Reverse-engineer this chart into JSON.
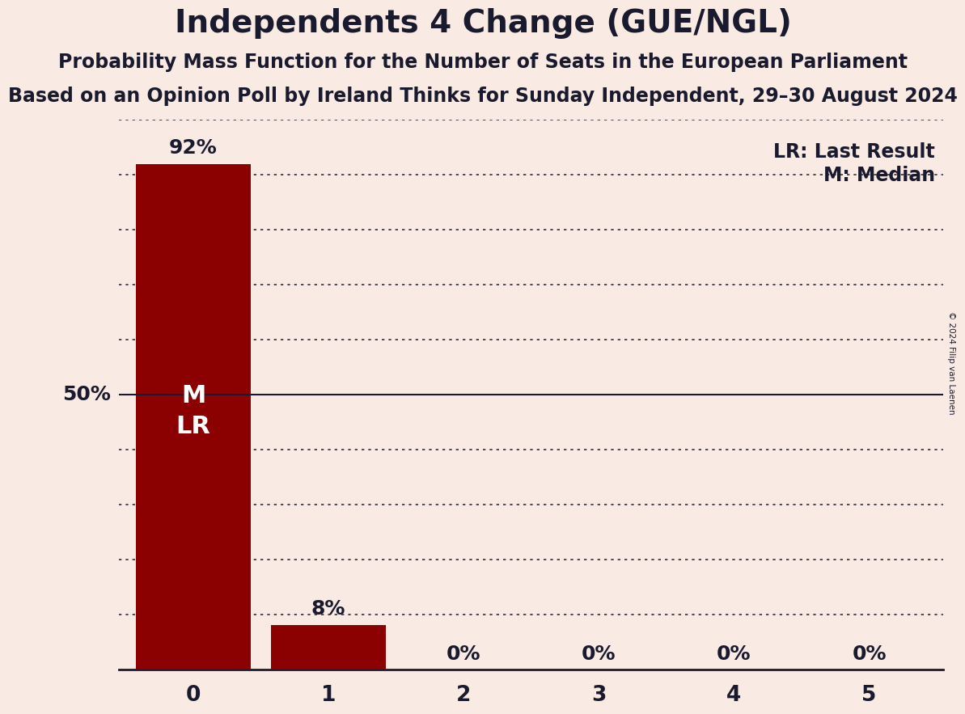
{
  "title": "Independents 4 Change (GUE/NGL)",
  "subtitle1": "Probability Mass Function for the Number of Seats in the European Parliament",
  "subtitle2": "Based on an Opinion Poll by Ireland Thinks for Sunday Independent, 29–30 August 2024",
  "copyright": "© 2024 Filip van Laenen",
  "seats": [
    0,
    1,
    2,
    3,
    4,
    5
  ],
  "probabilities": [
    0.92,
    0.08,
    0.0,
    0.0,
    0.0,
    0.0
  ],
  "bar_color": "#8b0000",
  "background_color": "#faeae4",
  "text_color": "#1a1a2e",
  "label_color_white": "#ffffff",
  "median_line_color": "#1a1a2e",
  "dotted_line_color": "#1a1a2e",
  "y_label_text": "50%",
  "y_label_value": 0.5,
  "legend_lr": "LR: Last Result",
  "legend_m": "M: Median",
  "title_fontsize": 28,
  "subtitle_fontsize": 17,
  "bar_label_fontsize": 18,
  "axis_fontsize": 19,
  "legend_fontsize": 17,
  "bar_inner_label_fontsize": 22,
  "ylim": [
    0,
    1.0
  ],
  "xlim": [
    -0.55,
    5.55
  ]
}
